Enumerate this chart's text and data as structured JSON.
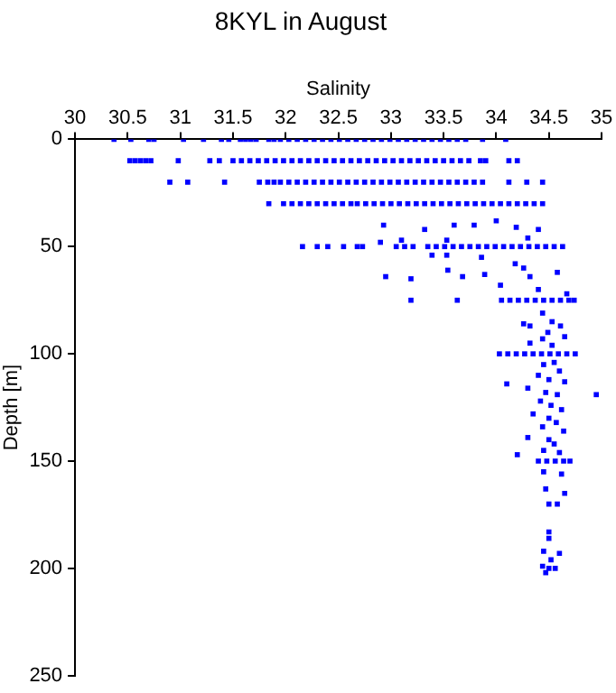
{
  "chart_data": {
    "type": "scatter",
    "title": "8KYL in August",
    "xlabel": "Salinity",
    "ylabel": "Depth [m]",
    "color": "#0000ff",
    "marker": "square",
    "grid": false,
    "xlim": [
      30,
      35
    ],
    "xticks": [
      30,
      30.5,
      31,
      31.5,
      32,
      32.5,
      33,
      33.5,
      34,
      34.5,
      35
    ],
    "ylim": [
      250,
      0
    ],
    "yticks": [
      0,
      50,
      100,
      150,
      200,
      250
    ],
    "x": [
      30.37,
      30.53,
      30.7,
      30.75,
      31.03,
      31.22,
      31.39,
      31.46,
      31.57,
      31.62,
      31.67,
      31.72,
      31.84,
      31.89,
      31.95,
      32.03,
      32.11,
      32.19,
      32.27,
      32.35,
      32.43,
      32.51,
      32.59,
      32.67,
      32.75,
      32.83,
      32.91,
      32.99,
      33.07,
      33.15,
      33.23,
      33.31,
      33.39,
      33.47,
      33.55,
      33.63,
      33.71,
      33.87,
      34.09,
      30.52,
      30.57,
      30.62,
      30.67,
      30.72,
      30.98,
      31.28,
      31.37,
      31.5,
      31.58,
      31.66,
      31.74,
      31.82,
      31.9,
      31.98,
      32.06,
      32.14,
      32.22,
      32.3,
      32.38,
      32.46,
      32.54,
      32.62,
      32.7,
      32.78,
      32.86,
      32.94,
      33.02,
      33.1,
      33.18,
      33.26,
      33.34,
      33.42,
      33.5,
      33.58,
      33.66,
      33.74,
      33.85,
      33.9,
      34.12,
      34.2,
      30.9,
      31.07,
      31.42,
      31.75,
      31.83,
      31.89,
      31.95,
      32.03,
      32.11,
      32.19,
      32.27,
      32.35,
      32.43,
      32.51,
      32.59,
      32.67,
      32.75,
      32.83,
      32.91,
      32.99,
      33.07,
      33.15,
      33.23,
      33.31,
      33.39,
      33.47,
      33.55,
      33.63,
      33.71,
      33.79,
      33.87,
      34.12,
      34.29,
      34.44,
      31.84,
      31.98,
      32.06,
      32.14,
      32.22,
      32.3,
      32.38,
      32.46,
      32.54,
      32.62,
      32.68,
      32.76,
      32.84,
      32.92,
      33.0,
      33.08,
      33.16,
      33.24,
      33.32,
      33.4,
      33.48,
      33.56,
      33.64,
      33.72,
      33.8,
      33.88,
      33.96,
      34.04,
      34.12,
      34.2,
      34.28,
      34.36,
      34.44,
      33.6,
      34.0,
      34.4,
      33.1,
      32.9,
      34.3,
      32.93,
      33.32,
      33.79,
      34.19,
      33.53,
      33.39,
      33.53,
      33.86,
      34.18,
      32.95,
      33.19,
      33.54,
      33.68,
      33.89,
      34.04,
      34.26,
      34.32,
      34.58,
      34.4,
      34.67,
      33.19,
      33.63,
      32.16,
      32.3,
      32.4,
      32.55,
      32.68,
      32.73,
      33.05,
      33.13,
      33.21,
      33.35,
      33.43,
      33.51,
      33.59,
      33.67,
      33.75,
      33.83,
      33.91,
      33.99,
      34.07,
      34.15,
      34.23,
      34.31,
      34.39,
      34.47,
      34.55,
      34.63,
      34.05,
      34.13,
      34.21,
      34.29,
      34.37,
      34.45,
      34.53,
      34.61,
      34.69,
      34.74,
      34.44,
      34.53,
      34.26,
      34.32,
      34.61,
      34.49,
      34.65,
      34.44,
      34.32,
      34.53,
      34.03,
      34.11,
      34.19,
      34.27,
      34.35,
      34.43,
      34.51,
      34.59,
      34.67,
      34.75,
      34.45,
      34.55,
      34.6,
      34.4,
      34.5,
      34.65,
      34.1,
      34.3,
      34.47,
      34.58,
      34.95,
      34.42,
      34.52,
      34.62,
      34.35,
      34.5,
      34.57,
      34.44,
      34.64,
      34.3,
      34.5,
      34.55,
      34.45,
      34.6,
      34.2,
      34.4,
      34.48,
      34.56,
      34.64,
      34.7,
      34.45,
      34.62,
      34.47,
      34.65,
      34.5,
      34.58,
      34.5,
      34.5,
      34.45,
      34.6,
      34.52,
      34.44,
      34.5,
      34.56,
      34.47
    ],
    "values": [
      0,
      0,
      0,
      0,
      0,
      0,
      0,
      0,
      0,
      0,
      0,
      0,
      0,
      0,
      0,
      0,
      0,
      0,
      0,
      0,
      0,
      0,
      0,
      0,
      0,
      0,
      0,
      0,
      0,
      0,
      0,
      0,
      0,
      0,
      0,
      0,
      0,
      0,
      0,
      10,
      10,
      10,
      10,
      10,
      10,
      10,
      10,
      10,
      10,
      10,
      10,
      10,
      10,
      10,
      10,
      10,
      10,
      10,
      10,
      10,
      10,
      10,
      10,
      10,
      10,
      10,
      10,
      10,
      10,
      10,
      10,
      10,
      10,
      10,
      10,
      10,
      10,
      10,
      10,
      10,
      20,
      20,
      20,
      20,
      20,
      20,
      20,
      20,
      20,
      20,
      20,
      20,
      20,
      20,
      20,
      20,
      20,
      20,
      20,
      20,
      20,
      20,
      20,
      20,
      20,
      20,
      20,
      20,
      20,
      20,
      20,
      20,
      20,
      20,
      30,
      30,
      30,
      30,
      30,
      30,
      30,
      30,
      30,
      30,
      30,
      30,
      30,
      30,
      30,
      30,
      30,
      30,
      30,
      30,
      30,
      30,
      30,
      30,
      30,
      30,
      30,
      30,
      30,
      30,
      30,
      30,
      30,
      40,
      38,
      42,
      47,
      48,
      46,
      40,
      42,
      40,
      41,
      47,
      54,
      54,
      55,
      58,
      64,
      65,
      61,
      64,
      63,
      68,
      60,
      64,
      62,
      70,
      72,
      75,
      75,
      50,
      50,
      50,
      50,
      50,
      50,
      50,
      50,
      50,
      50,
      50,
      50,
      50,
      50,
      50,
      50,
      50,
      50,
      50,
      50,
      50,
      50,
      50,
      50,
      50,
      50,
      75,
      75,
      75,
      75,
      75,
      75,
      75,
      75,
      75,
      75,
      81,
      85,
      86,
      87,
      87,
      90,
      92,
      93,
      95,
      96,
      100,
      100,
      100,
      100,
      100,
      100,
      100,
      100,
      100,
      100,
      105,
      104,
      108,
      110,
      112,
      113,
      114,
      116,
      118,
      119,
      119,
      122,
      124,
      126,
      128,
      130,
      132,
      134,
      136,
      139,
      140,
      142,
      145,
      146,
      147,
      150,
      150,
      150,
      150,
      150,
      155,
      156,
      163,
      165,
      170,
      170,
      183,
      186,
      192,
      193,
      196,
      199,
      200,
      200,
      202
    ]
  }
}
